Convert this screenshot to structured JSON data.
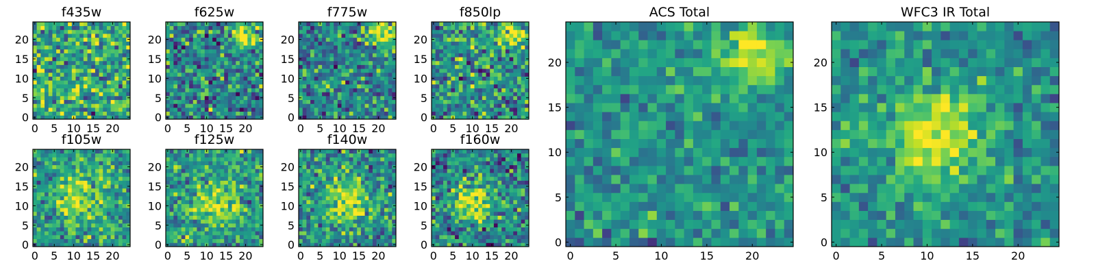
{
  "chart_data": [
    {
      "type": "heatmap",
      "title": "f435w",
      "grid_size": 25,
      "seed": 11,
      "blob": [
        12,
        12,
        2,
        0.0
      ],
      "noise": 0.8,
      "offset": 0.6,
      "xticks": [
        0,
        5,
        10,
        15,
        20
      ],
      "yticks": [
        0,
        5,
        10,
        15,
        20
      ],
      "xlim": [
        -0.5,
        24.5
      ],
      "ylim": [
        -0.5,
        24.5
      ],
      "colormap": "viridis"
    },
    {
      "type": "heatmap",
      "title": "f625w",
      "grid_size": 25,
      "seed": 23,
      "blob": [
        20,
        21,
        2.5,
        0.5
      ],
      "noise": 0.75,
      "offset": 0.45,
      "xticks": [
        0,
        5,
        10,
        15,
        20
      ],
      "yticks": [
        0,
        5,
        10,
        15,
        20
      ],
      "xlim": [
        -0.5,
        24.5
      ],
      "ylim": [
        -0.5,
        24.5
      ],
      "colormap": "viridis"
    },
    {
      "type": "heatmap",
      "title": "f775w",
      "grid_size": 25,
      "seed": 37,
      "blob": [
        21,
        21,
        2.5,
        0.55
      ],
      "noise": 0.7,
      "offset": 0.45,
      "xticks": [
        0,
        5,
        10,
        15,
        20
      ],
      "yticks": [
        0,
        5,
        10,
        15,
        20
      ],
      "xlim": [
        -0.5,
        24.5
      ],
      "ylim": [
        -0.5,
        24.5
      ],
      "colormap": "viridis"
    },
    {
      "type": "heatmap",
      "title": "f850lp",
      "grid_size": 25,
      "seed": 41,
      "blob": [
        20,
        21,
        2.5,
        0.5
      ],
      "noise": 0.75,
      "offset": 0.5,
      "xticks": [
        0,
        5,
        10,
        15,
        20
      ],
      "yticks": [
        0,
        5,
        10,
        15,
        20
      ],
      "xlim": [
        -0.5,
        24.5
      ],
      "ylim": [
        -0.5,
        24.5
      ],
      "colormap": "viridis"
    },
    {
      "type": "heatmap",
      "title": "f105w",
      "grid_size": 25,
      "seed": 53,
      "blob": [
        11,
        12,
        4,
        0.35
      ],
      "noise": 0.6,
      "offset": 0.55,
      "xticks": [
        0,
        5,
        10,
        15,
        20
      ],
      "yticks": [
        0,
        5,
        10,
        15,
        20
      ],
      "xlim": [
        -0.5,
        24.5
      ],
      "ylim": [
        -0.5,
        24.5
      ],
      "colormap": "viridis"
    },
    {
      "type": "heatmap",
      "title": "f125w",
      "grid_size": 25,
      "seed": 67,
      "blob": [
        12,
        11,
        4,
        0.35
      ],
      "noise": 0.6,
      "offset": 0.55,
      "xticks": [
        0,
        5,
        10,
        15,
        20
      ],
      "yticks": [
        0,
        5,
        10,
        15,
        20
      ],
      "xlim": [
        -0.5,
        24.5
      ],
      "ylim": [
        -0.5,
        24.5
      ],
      "colormap": "viridis"
    },
    {
      "type": "heatmap",
      "title": "f140w",
      "grid_size": 25,
      "seed": 79,
      "blob": [
        12,
        11,
        4,
        0.4
      ],
      "noise": 0.65,
      "offset": 0.5,
      "xticks": [
        0,
        5,
        10,
        15,
        20
      ],
      "yticks": [
        0,
        5,
        10,
        15,
        20
      ],
      "xlim": [
        -0.5,
        24.5
      ],
      "ylim": [
        -0.5,
        24.5
      ],
      "colormap": "viridis"
    },
    {
      "type": "heatmap",
      "title": "f160w",
      "grid_size": 25,
      "seed": 83,
      "blob": [
        10,
        11,
        4,
        0.45
      ],
      "noise": 0.7,
      "offset": 0.45,
      "xticks": [
        0,
        5,
        10,
        15,
        20
      ],
      "yticks": [
        0,
        5,
        10,
        15,
        20
      ],
      "xlim": [
        -0.5,
        24.5
      ],
      "ylim": [
        -0.5,
        24.5
      ],
      "colormap": "viridis"
    },
    {
      "type": "heatmap",
      "title": "ACS Total",
      "grid_size": 25,
      "seed": 97,
      "blob": [
        20,
        21,
        2.5,
        0.5
      ],
      "noise": 0.45,
      "offset": 0.5,
      "xticks": [
        0,
        5,
        10,
        15,
        20
      ],
      "yticks": [
        0,
        5,
        10,
        15,
        20
      ],
      "xlim": [
        -0.5,
        24.5
      ],
      "ylim": [
        -0.5,
        24.5
      ],
      "colormap": "viridis"
    },
    {
      "type": "heatmap",
      "title": "WFC3 IR Total",
      "grid_size": 25,
      "seed": 101,
      "blob": [
        11,
        12,
        4,
        0.45
      ],
      "noise": 0.45,
      "offset": 0.5,
      "xticks": [
        0,
        5,
        10,
        15,
        20
      ],
      "yticks": [
        0,
        5,
        10,
        15,
        20
      ],
      "xlim": [
        -0.5,
        24.5
      ],
      "ylim": [
        -0.5,
        24.5
      ],
      "colormap": "viridis"
    }
  ]
}
